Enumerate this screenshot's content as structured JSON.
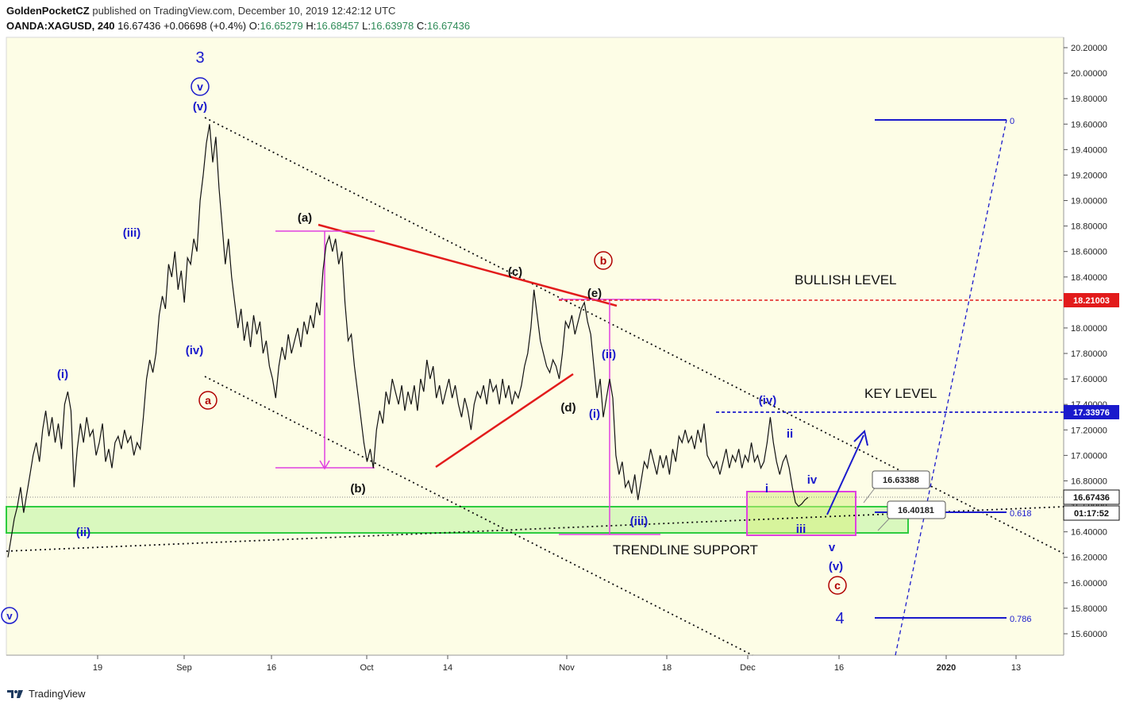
{
  "header": {
    "publisher": "GoldenPocketCZ",
    "publisher_suffix": "published on TradingView.com, December 10, 2019 12:42:12 UTC",
    "symbol": "OANDA:XAGUSD, 240",
    "last": "16.67436",
    "change": "+0.06698 (+0.4%)",
    "o_label": "O:",
    "o": "16.65279",
    "h_label": "H:",
    "h": "16.68457",
    "l_label": "L:",
    "l": "16.63978",
    "c_label": "C:",
    "c": "16.67436"
  },
  "footer": {
    "brand": "TradingView"
  },
  "colors": {
    "background": "#fdfde6",
    "price_line": "#111111",
    "blue": "#1a1acc",
    "red": "#e21b1b",
    "magenta": "#e040e0",
    "green": "#2ecc40",
    "green_fill": "#ccf5b0",
    "dark_red": "#b00000"
  },
  "chart_data": {
    "type": "line",
    "title": "OANDA:XAGUSD, 240",
    "ylim": [
      15.4,
      20.3
    ],
    "y_ticks": [
      "20.20000",
      "20.00000",
      "19.80000",
      "19.60000",
      "19.40000",
      "19.20000",
      "19.00000",
      "18.80000",
      "18.60000",
      "18.40000",
      "18.20000",
      "18.00000",
      "17.80000",
      "17.60000",
      "17.40000",
      "17.20000",
      "17.00000",
      "16.80000",
      "16.60000",
      "16.40000",
      "16.20000",
      "16.00000",
      "15.80000",
      "15.60000"
    ],
    "x_ticks": [
      "19",
      "Sep",
      "16",
      "Oct",
      "14",
      "Nov",
      "18",
      "Dec",
      "16",
      "2020",
      "13"
    ],
    "price_tags": {
      "bullish": "18.21003",
      "key": "17.33976",
      "last": "16.67436",
      "countdown": "01:17:52"
    },
    "callouts": [
      "16.63388",
      "16.40181"
    ],
    "fib_labels": [
      "0",
      "0.618",
      "0.786"
    ],
    "text_labels": {
      "bullish_level": "BULLISH LEVEL",
      "key_level": "KEY LEVEL",
      "trendline_support": "TRENDLINE SUPPORT"
    },
    "wave_labels": {
      "w3": "3",
      "circ_v_top": "v",
      "v_top": "(v)",
      "iii_a": "(iii)",
      "iv_a": "(iv)",
      "i_a": "(i)",
      "ii_a": "(ii)",
      "v_left": "v",
      "circ_a": "a",
      "a_paren": "(a)",
      "b_paren": "(b)",
      "c_paren": "(c)",
      "d_paren": "(d)",
      "e_paren": "(e)",
      "circ_b": "b",
      "i_b": "(i)",
      "ii_b": "(ii)",
      "iii_b": "(iii)",
      "iv_b": "(iv)",
      "i_s": "i",
      "ii_s": "ii",
      "iii_s": "iii",
      "iv_s": "iv",
      "v_s": "v",
      "v_p": "(v)",
      "circ_c": "c",
      "w4": "4"
    },
    "series": [
      {
        "values": [
          [
            0,
            16.2
          ],
          [
            4,
            16.35
          ],
          [
            8,
            16.5
          ],
          [
            12,
            16.6
          ],
          [
            16,
            16.75
          ],
          [
            20,
            16.55
          ],
          [
            24,
            16.7
          ],
          [
            28,
            16.85
          ],
          [
            32,
            17.0
          ],
          [
            36,
            17.1
          ],
          [
            40,
            16.95
          ],
          [
            44,
            17.2
          ],
          [
            48,
            17.35
          ],
          [
            52,
            17.15
          ],
          [
            56,
            17.3
          ],
          [
            60,
            17.1
          ],
          [
            64,
            17.25
          ],
          [
            68,
            17.05
          ],
          [
            72,
            17.4
          ],
          [
            76,
            17.5
          ],
          [
            80,
            17.35
          ],
          [
            84,
            16.75
          ],
          [
            88,
            17.05
          ],
          [
            92,
            17.25
          ],
          [
            96,
            17.1
          ],
          [
            100,
            17.3
          ],
          [
            104,
            17.15
          ],
          [
            108,
            17.2
          ],
          [
            112,
            17.0
          ],
          [
            116,
            17.1
          ],
          [
            120,
            17.25
          ],
          [
            124,
            16.95
          ],
          [
            128,
            17.05
          ],
          [
            132,
            16.9
          ],
          [
            136,
            17.1
          ],
          [
            140,
            17.15
          ],
          [
            144,
            17.05
          ],
          [
            148,
            17.2
          ],
          [
            152,
            17.1
          ],
          [
            156,
            17.15
          ],
          [
            160,
            17.0
          ],
          [
            164,
            17.1
          ],
          [
            168,
            17.05
          ],
          [
            172,
            17.3
          ],
          [
            176,
            17.6
          ],
          [
            180,
            17.75
          ],
          [
            184,
            17.65
          ],
          [
            188,
            17.8
          ],
          [
            192,
            18.1
          ],
          [
            196,
            18.25
          ],
          [
            200,
            18.15
          ],
          [
            204,
            18.5
          ],
          [
            208,
            18.4
          ],
          [
            212,
            18.6
          ],
          [
            216,
            18.3
          ],
          [
            220,
            18.45
          ],
          [
            224,
            18.2
          ],
          [
            228,
            18.55
          ],
          [
            232,
            18.5
          ],
          [
            236,
            18.7
          ],
          [
            240,
            18.6
          ],
          [
            244,
            19.0
          ],
          [
            248,
            19.2
          ],
          [
            252,
            19.45
          ],
          [
            256,
            19.6
          ],
          [
            260,
            19.3
          ],
          [
            264,
            19.5
          ],
          [
            268,
            19.1
          ],
          [
            272,
            18.8
          ],
          [
            276,
            18.5
          ],
          [
            280,
            18.7
          ],
          [
            284,
            18.4
          ],
          [
            288,
            18.2
          ],
          [
            292,
            18.0
          ],
          [
            296,
            18.15
          ],
          [
            300,
            17.9
          ],
          [
            304,
            18.05
          ],
          [
            308,
            17.85
          ],
          [
            312,
            18.1
          ],
          [
            316,
            17.95
          ],
          [
            320,
            18.05
          ],
          [
            324,
            17.8
          ],
          [
            328,
            17.9
          ],
          [
            332,
            17.7
          ],
          [
            336,
            17.6
          ],
          [
            340,
            17.45
          ],
          [
            344,
            17.7
          ],
          [
            348,
            17.85
          ],
          [
            352,
            17.75
          ],
          [
            356,
            17.95
          ],
          [
            360,
            17.8
          ],
          [
            364,
            17.9
          ],
          [
            368,
            18.0
          ],
          [
            372,
            17.85
          ],
          [
            376,
            18.05
          ],
          [
            380,
            17.95
          ],
          [
            384,
            18.1
          ],
          [
            388,
            18.0
          ],
          [
            392,
            18.2
          ],
          [
            396,
            18.1
          ],
          [
            400,
            18.45
          ],
          [
            404,
            18.65
          ],
          [
            408,
            18.72
          ],
          [
            412,
            18.6
          ],
          [
            416,
            18.7
          ],
          [
            420,
            18.5
          ],
          [
            424,
            18.6
          ],
          [
            428,
            18.2
          ],
          [
            432,
            17.9
          ],
          [
            436,
            17.95
          ],
          [
            440,
            17.7
          ],
          [
            444,
            17.5
          ],
          [
            448,
            17.3
          ],
          [
            452,
            17.1
          ],
          [
            456,
            16.95
          ],
          [
            460,
            17.05
          ],
          [
            464,
            16.9
          ],
          [
            468,
            17.2
          ],
          [
            472,
            17.35
          ],
          [
            476,
            17.25
          ],
          [
            480,
            17.5
          ],
          [
            484,
            17.4
          ],
          [
            488,
            17.6
          ],
          [
            492,
            17.5
          ],
          [
            496,
            17.4
          ],
          [
            500,
            17.55
          ],
          [
            504,
            17.35
          ],
          [
            508,
            17.5
          ],
          [
            512,
            17.4
          ],
          [
            516,
            17.55
          ],
          [
            520,
            17.35
          ],
          [
            524,
            17.6
          ],
          [
            528,
            17.5
          ],
          [
            532,
            17.75
          ],
          [
            536,
            17.6
          ],
          [
            540,
            17.7
          ],
          [
            544,
            17.45
          ],
          [
            548,
            17.55
          ],
          [
            552,
            17.4
          ],
          [
            556,
            17.5
          ],
          [
            560,
            17.6
          ],
          [
            564,
            17.45
          ],
          [
            568,
            17.55
          ],
          [
            572,
            17.4
          ],
          [
            576,
            17.3
          ],
          [
            580,
            17.45
          ],
          [
            584,
            17.35
          ],
          [
            588,
            17.2
          ],
          [
            592,
            17.4
          ],
          [
            596,
            17.5
          ],
          [
            600,
            17.45
          ],
          [
            604,
            17.55
          ],
          [
            608,
            17.4
          ],
          [
            612,
            17.6
          ],
          [
            616,
            17.5
          ],
          [
            620,
            17.55
          ],
          [
            624,
            17.4
          ],
          [
            628,
            17.6
          ],
          [
            632,
            17.45
          ],
          [
            636,
            17.55
          ],
          [
            640,
            17.4
          ],
          [
            644,
            17.5
          ],
          [
            648,
            17.45
          ],
          [
            652,
            17.55
          ],
          [
            656,
            17.7
          ],
          [
            660,
            17.8
          ],
          [
            664,
            18.0
          ],
          [
            668,
            18.3
          ],
          [
            672,
            18.1
          ],
          [
            676,
            17.9
          ],
          [
            680,
            17.8
          ],
          [
            684,
            17.7
          ],
          [
            688,
            17.65
          ],
          [
            692,
            17.75
          ],
          [
            696,
            17.7
          ],
          [
            700,
            17.6
          ],
          [
            704,
            17.8
          ],
          [
            708,
            18.05
          ],
          [
            712,
            18.0
          ],
          [
            716,
            18.1
          ],
          [
            720,
            17.95
          ],
          [
            724,
            18.05
          ],
          [
            728,
            18.15
          ],
          [
            732,
            18.2
          ],
          [
            736,
            18.05
          ],
          [
            740,
            17.95
          ],
          [
            744,
            17.7
          ],
          [
            748,
            17.45
          ],
          [
            752,
            17.6
          ],
          [
            756,
            17.3
          ],
          [
            760,
            17.45
          ],
          [
            764,
            17.6
          ],
          [
            768,
            17.45
          ],
          [
            772,
            17.0
          ],
          [
            776,
            16.85
          ],
          [
            780,
            16.95
          ],
          [
            784,
            16.75
          ],
          [
            788,
            16.8
          ],
          [
            792,
            16.7
          ],
          [
            796,
            16.85
          ],
          [
            800,
            16.65
          ],
          [
            804,
            16.8
          ],
          [
            808,
            16.95
          ],
          [
            812,
            16.9
          ],
          [
            816,
            17.05
          ],
          [
            820,
            16.95
          ],
          [
            824,
            16.85
          ],
          [
            828,
            17.0
          ],
          [
            832,
            16.9
          ],
          [
            836,
            17.0
          ],
          [
            840,
            16.85
          ],
          [
            844,
            17.05
          ],
          [
            848,
            16.95
          ],
          [
            852,
            17.15
          ],
          [
            856,
            17.1
          ],
          [
            860,
            17.2
          ],
          [
            864,
            17.1
          ],
          [
            868,
            17.15
          ],
          [
            872,
            17.05
          ],
          [
            876,
            17.2
          ],
          [
            880,
            17.1
          ],
          [
            884,
            17.25
          ],
          [
            888,
            17.0
          ],
          [
            892,
            16.95
          ],
          [
            896,
            16.9
          ],
          [
            900,
            16.95
          ],
          [
            904,
            16.85
          ],
          [
            908,
            16.95
          ],
          [
            912,
            17.05
          ],
          [
            916,
            16.9
          ],
          [
            920,
            17.0
          ],
          [
            924,
            16.95
          ],
          [
            928,
            17.05
          ],
          [
            932,
            16.9
          ],
          [
            936,
            17.0
          ],
          [
            940,
            16.95
          ],
          [
            944,
            17.1
          ],
          [
            948,
            16.95
          ],
          [
            952,
            17.0
          ],
          [
            956,
            16.9
          ],
          [
            960,
            16.95
          ],
          [
            964,
            17.1
          ],
          [
            968,
            17.3
          ],
          [
            972,
            17.1
          ],
          [
            976,
            16.95
          ],
          [
            980,
            16.85
          ],
          [
            984,
            16.95
          ],
          [
            988,
            17.0
          ],
          [
            992,
            16.9
          ],
          [
            996,
            16.75
          ],
          [
            1000,
            16.63
          ],
          [
            1004,
            16.6
          ],
          [
            1008,
            16.62
          ],
          [
            1012,
            16.65
          ],
          [
            1016,
            16.67
          ]
        ]
      }
    ]
  }
}
